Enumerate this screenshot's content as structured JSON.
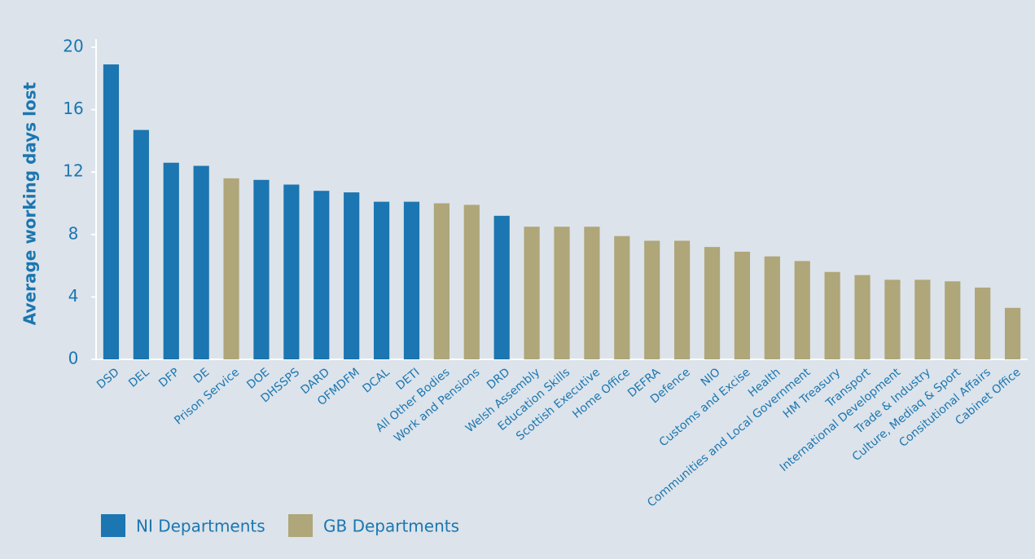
{
  "chart_data": {
    "type": "bar",
    "y_label": "Average working days lost",
    "categories": [
      "DSD",
      "DEL",
      "DFP",
      "DE",
      "Prison Service",
      "DOE",
      "DHSSPS",
      "DARD",
      "OFMDFM",
      "DCAL",
      "DETI",
      "All Other Bodies",
      "Work and Pensions",
      "DRD",
      "Welsh Assembly",
      "Education Skills",
      "Scottish Executive",
      "Home Office",
      "DEFRA",
      "Defence",
      "NIO",
      "Customs and Excise",
      "Health",
      "Communities and Local Government",
      "HM Treasury",
      "Transport",
      "International Development",
      "Trade & Industry",
      "Culture, Mediaq & Sport",
      "Consitutional Affairs",
      "Cabinet Office"
    ],
    "series": [
      {
        "name": "NI Departments",
        "color": "#1b76b1",
        "values": [
          18.9,
          14.7,
          12.6,
          12.4,
          null,
          11.5,
          11.2,
          10.8,
          10.7,
          10.1,
          10.1,
          null,
          null,
          9.2,
          null,
          null,
          null,
          null,
          null,
          null,
          null,
          null,
          null,
          null,
          null,
          null,
          null,
          null,
          null,
          null,
          null
        ]
      },
      {
        "name": "GB Departments",
        "color": "#afa679",
        "values": [
          null,
          null,
          null,
          null,
          11.6,
          null,
          null,
          null,
          null,
          null,
          null,
          10.0,
          9.9,
          null,
          8.5,
          8.5,
          8.5,
          7.9,
          7.6,
          7.6,
          7.2,
          6.9,
          6.6,
          6.3,
          5.6,
          5.4,
          5.1,
          5.1,
          5.0,
          4.6,
          3.3
        ]
      }
    ],
    "ylim": [
      0,
      20
    ],
    "yticks": [
      0,
      4,
      8,
      12,
      16,
      20
    ],
    "grid": false,
    "legend": "bottom-left"
  }
}
